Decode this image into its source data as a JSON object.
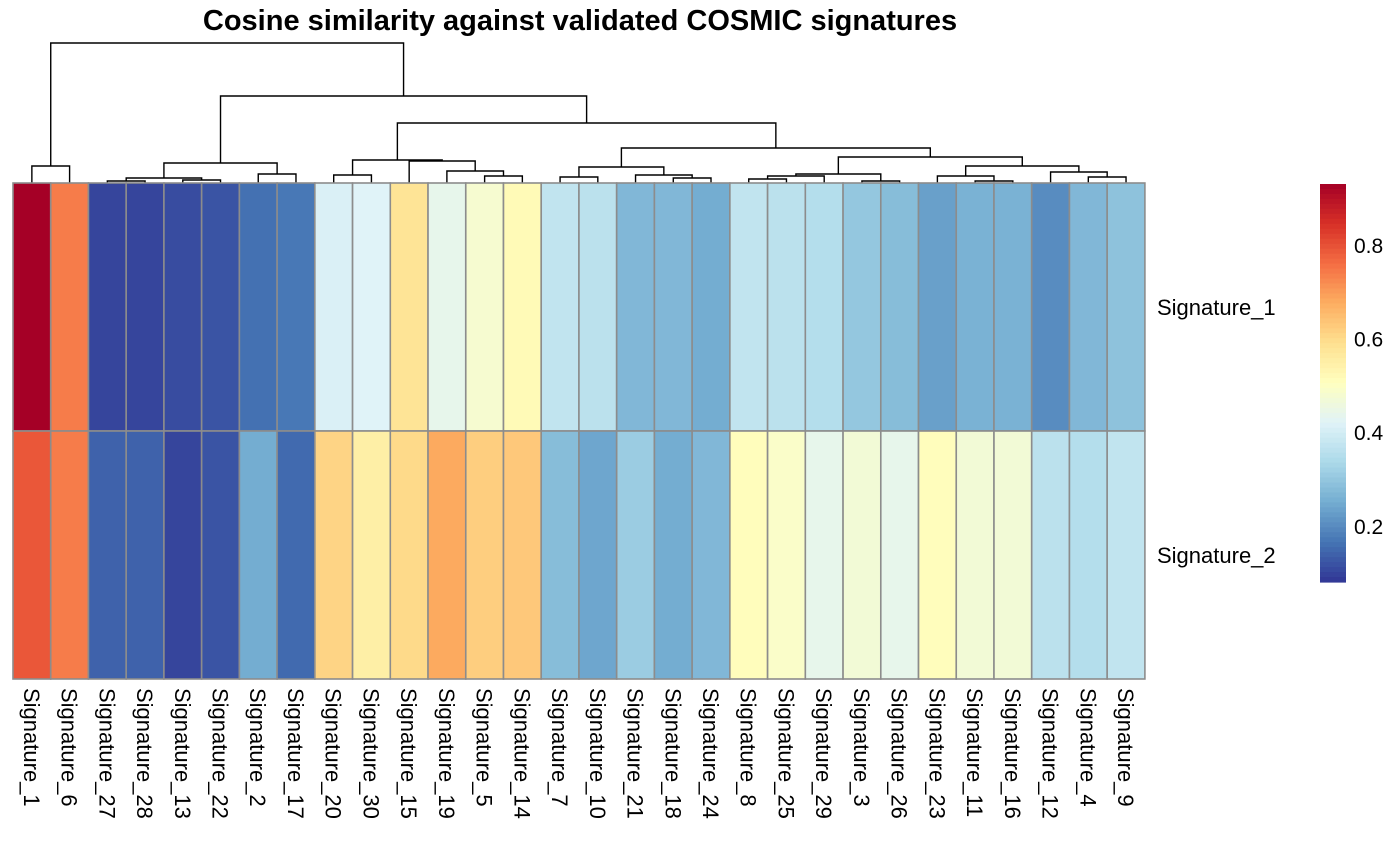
{
  "chart_data": {
    "type": "heatmap",
    "title": "Cosine similarity against validated COSMIC signatures",
    "rows": [
      "Signature_1",
      "Signature_2"
    ],
    "columns": [
      "Signature_1",
      "Signature_6",
      "Signature_27",
      "Signature_28",
      "Signature_13",
      "Signature_22",
      "Signature_2",
      "Signature_17",
      "Signature_20",
      "Signature_30",
      "Signature_15",
      "Signature_19",
      "Signature_5",
      "Signature_14",
      "Signature_7",
      "Signature_10",
      "Signature_21",
      "Signature_18",
      "Signature_24",
      "Signature_8",
      "Signature_25",
      "Signature_29",
      "Signature_3",
      "Signature_26",
      "Signature_23",
      "Signature_11",
      "Signature_16",
      "Signature_12",
      "Signature_4",
      "Signature_9"
    ],
    "values": [
      [
        0.93,
        0.74,
        0.1,
        0.1,
        0.11,
        0.12,
        0.16,
        0.17,
        0.41,
        0.42,
        0.58,
        0.44,
        0.48,
        0.52,
        0.37,
        0.36,
        0.27,
        0.27,
        0.25,
        0.37,
        0.36,
        0.35,
        0.3,
        0.28,
        0.23,
        0.26,
        0.26,
        0.2,
        0.27,
        0.29
      ],
      [
        0.79,
        0.74,
        0.14,
        0.14,
        0.1,
        0.12,
        0.25,
        0.15,
        0.61,
        0.55,
        0.6,
        0.68,
        0.62,
        0.63,
        0.28,
        0.24,
        0.31,
        0.25,
        0.27,
        0.51,
        0.49,
        0.44,
        0.47,
        0.44,
        0.51,
        0.47,
        0.47,
        0.36,
        0.35,
        0.37
      ]
    ],
    "color_scale": {
      "stops": [
        "#313695",
        "#4575b4",
        "#74add1",
        "#abd9e9",
        "#e0f3f8",
        "#ffffbf",
        "#fee090",
        "#fdae61",
        "#f46d43",
        "#d73027",
        "#a50026"
      ],
      "colorbar_ticks": [
        "0.2",
        "0.4",
        "0.6",
        "0.8"
      ]
    },
    "dendrogram": "column clustering tree drawn above the heatmap",
    "grid": true,
    "legend_placement": "right"
  }
}
